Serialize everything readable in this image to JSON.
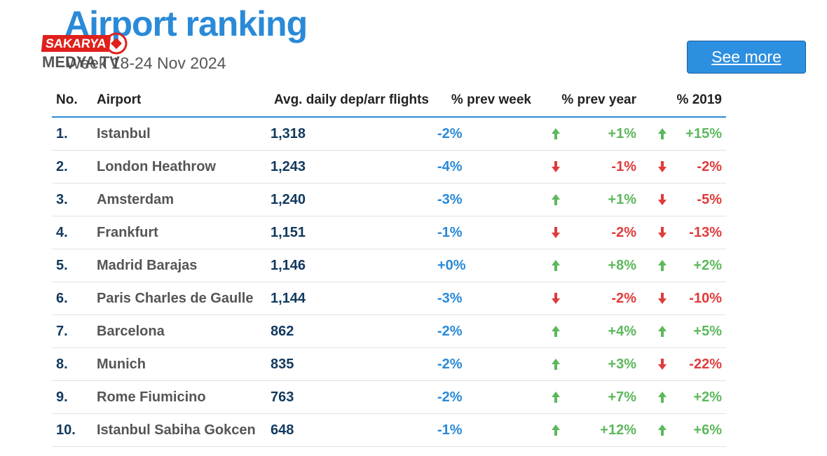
{
  "header": {
    "title": "Airport ranking",
    "subtitle": "Week 18-24 Nov 2024",
    "see_more": "See more"
  },
  "watermark": {
    "brand": "SAKARYA",
    "sub": "MEDYA TV"
  },
  "colors": {
    "accent": "#2a8ad8",
    "up": "#5cb85c",
    "down": "#e03b3b",
    "navy": "#12395e"
  },
  "table": {
    "headers": {
      "no": "No.",
      "airport": "Airport",
      "flights": "Avg. daily dep/arr flights",
      "prev_week": "% prev week",
      "prev_year": "% prev year",
      "y2019": "% 2019"
    },
    "rows": [
      {
        "no": "1.",
        "airport": "Istanbul",
        "flights": "1,318",
        "prev_week": "-2%",
        "prev_year": "+1%",
        "prev_year_dir": "up",
        "y2019": "+15%",
        "y2019_dir": "up"
      },
      {
        "no": "2.",
        "airport": "London Heathrow",
        "flights": "1,243",
        "prev_week": "-4%",
        "prev_year": "-1%",
        "prev_year_dir": "down",
        "y2019": "-2%",
        "y2019_dir": "down"
      },
      {
        "no": "3.",
        "airport": "Amsterdam",
        "flights": "1,240",
        "prev_week": "-3%",
        "prev_year": "+1%",
        "prev_year_dir": "up",
        "y2019": "-5%",
        "y2019_dir": "down"
      },
      {
        "no": "4.",
        "airport": "Frankfurt",
        "flights": "1,151",
        "prev_week": "-1%",
        "prev_year": "-2%",
        "prev_year_dir": "down",
        "y2019": "-13%",
        "y2019_dir": "down"
      },
      {
        "no": "5.",
        "airport": "Madrid Barajas",
        "flights": "1,146",
        "prev_week": "+0%",
        "prev_year": "+8%",
        "prev_year_dir": "up",
        "y2019": "+2%",
        "y2019_dir": "up"
      },
      {
        "no": "6.",
        "airport": "Paris Charles de Gaulle",
        "flights": "1,144",
        "prev_week": "-3%",
        "prev_year": "-2%",
        "prev_year_dir": "down",
        "y2019": "-10%",
        "y2019_dir": "down"
      },
      {
        "no": "7.",
        "airport": "Barcelona",
        "flights": "862",
        "prev_week": "-2%",
        "prev_year": "+4%",
        "prev_year_dir": "up",
        "y2019": "+5%",
        "y2019_dir": "up"
      },
      {
        "no": "8.",
        "airport": "Munich",
        "flights": "835",
        "prev_week": "-2%",
        "prev_year": "+3%",
        "prev_year_dir": "up",
        "y2019": "-22%",
        "y2019_dir": "down"
      },
      {
        "no": "9.",
        "airport": "Rome Fiumicino",
        "flights": "763",
        "prev_week": "-2%",
        "prev_year": "+7%",
        "prev_year_dir": "up",
        "y2019": "+2%",
        "y2019_dir": "up"
      },
      {
        "no": "10.",
        "airport": "Istanbul Sabiha Gokcen",
        "flights": "648",
        "prev_week": "-1%",
        "prev_year": "+12%",
        "prev_year_dir": "up",
        "y2019": "+6%",
        "y2019_dir": "up"
      }
    ]
  }
}
